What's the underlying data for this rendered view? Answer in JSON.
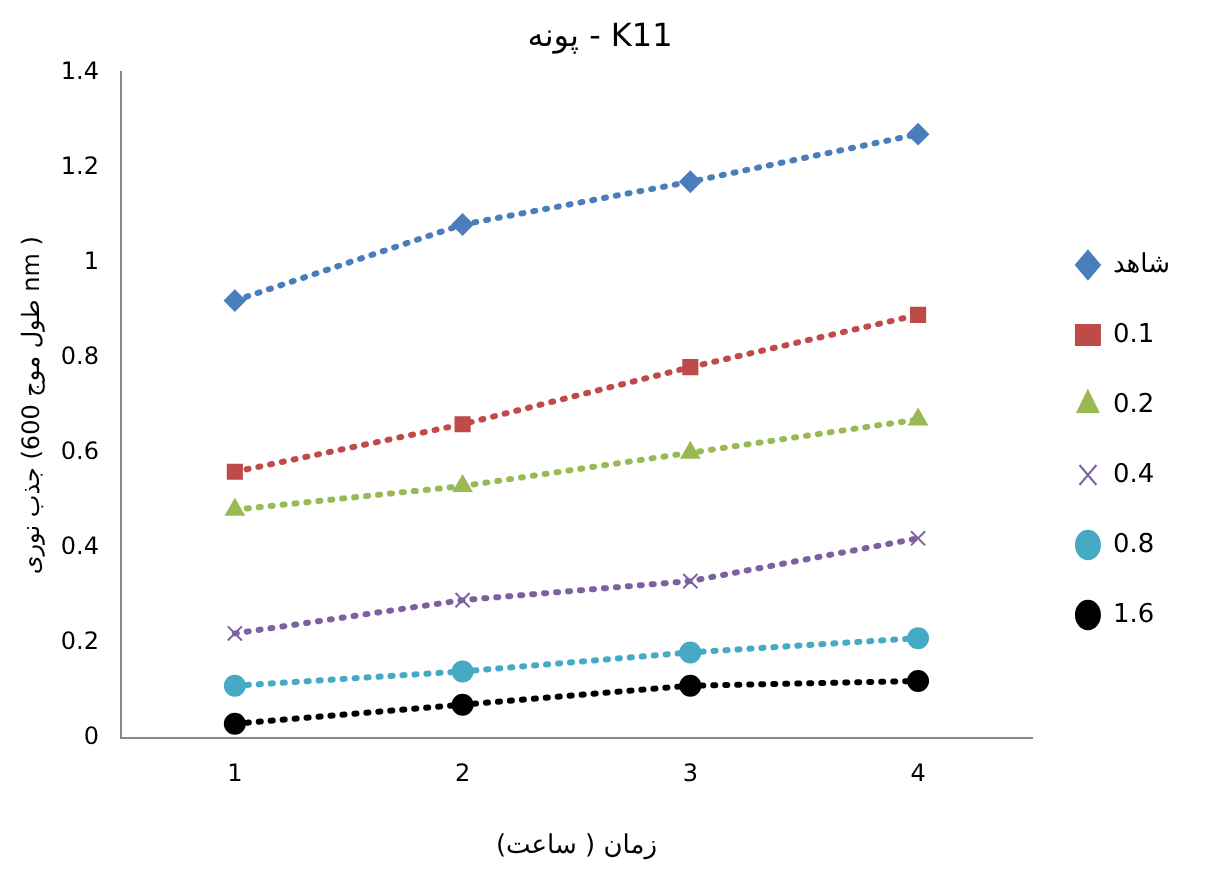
{
  "chart_data": {
    "type": "line",
    "title": "پونه - K11",
    "xlabel": "زمان ( ساعت)",
    "ylabel": "جذب نوری (طول موج 600 nm )",
    "categories": [
      "1",
      "2",
      "3",
      "4"
    ],
    "series": [
      {
        "name": "شاهد",
        "color": "#4a7ebb",
        "marker": "diamond",
        "values": [
          0.92,
          1.08,
          1.17,
          1.27
        ]
      },
      {
        "name": "0.1",
        "color": "#be4b48",
        "marker": "square",
        "values": [
          0.56,
          0.66,
          0.78,
          0.89
        ]
      },
      {
        "name": "0.2",
        "color": "#98b954",
        "marker": "triangle",
        "values": [
          0.48,
          0.53,
          0.6,
          0.67
        ]
      },
      {
        "name": "0.4",
        "color": "#7d60a0",
        "marker": "cross",
        "values": [
          0.22,
          0.29,
          0.33,
          0.42
        ]
      },
      {
        "name": "0.8",
        "color": "#46aac5",
        "marker": "circle",
        "values": [
          0.11,
          0.14,
          0.18,
          0.21
        ]
      },
      {
        "name": "1.6",
        "color": "#000000",
        "marker": "circle",
        "values": [
          0.03,
          0.07,
          0.11,
          0.12
        ]
      }
    ],
    "ylim": [
      0,
      1.4
    ],
    "yticks": [
      0,
      0.2,
      0.4,
      0.6,
      0.8,
      1,
      1.2,
      1.4
    ],
    "grid": false,
    "legend": "right",
    "line_style": "dotted"
  }
}
